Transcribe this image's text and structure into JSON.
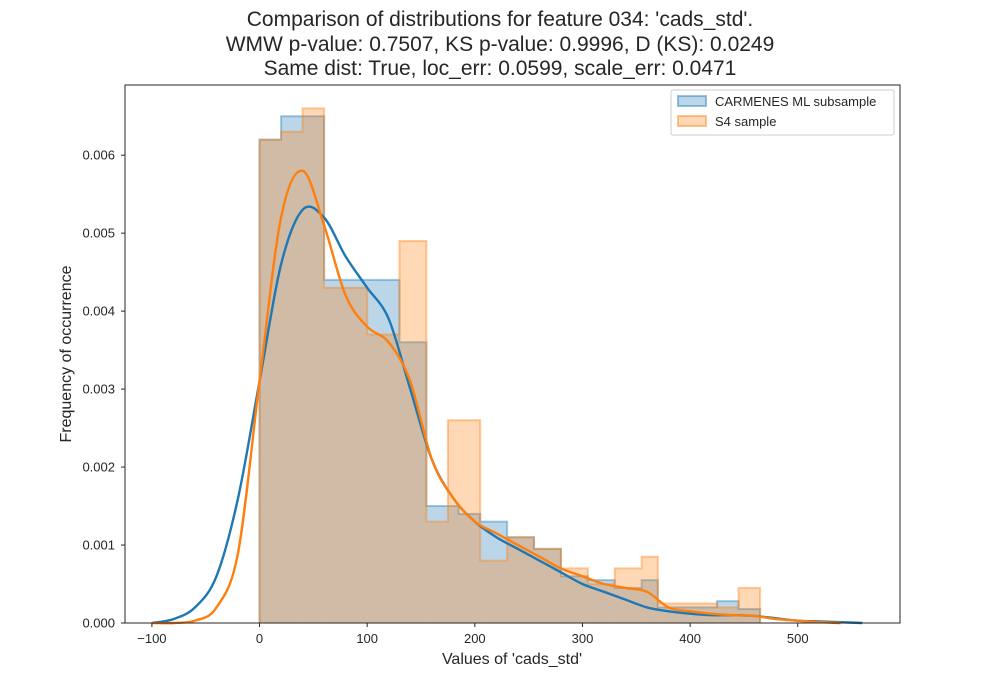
{
  "chart_data": {
    "type": "histogram",
    "title_lines": [
      "Comparison of distributions for feature 034: 'cads_std'.",
      "WMW p-value: 0.7507, KS p-value: 0.9996, D (KS): 0.0249",
      "Same dist: True, loc_err: 0.0599, scale_err: 0.0471"
    ],
    "xlabel": "Values of 'cads_std'",
    "ylabel": "Frequency of occurrence",
    "xlim": [
      -125,
      595
    ],
    "ylim": [
      0,
      0.0069
    ],
    "xticks": [
      -100,
      0,
      100,
      200,
      300,
      400,
      500
    ],
    "yticks": [
      0,
      0.001,
      0.002,
      0.003,
      0.004,
      0.005,
      0.006
    ],
    "ytick_labels": [
      "0.000",
      "0.001",
      "0.002",
      "0.003",
      "0.004",
      "0.005",
      "0.006"
    ],
    "grid": false,
    "legend_position": "top-right",
    "series": [
      {
        "name": "CARMENES ML subsample",
        "color": "#1f77b4",
        "bin_edges": [
          0,
          20,
          40,
          60,
          100,
          130,
          155,
          185,
          205,
          230,
          255,
          280,
          305,
          330,
          355,
          370,
          425,
          445,
          465
        ],
        "hist": [
          0.0062,
          0.0065,
          0.0065,
          0.0044,
          0.0044,
          0.0036,
          0.0015,
          0.0014,
          0.0013,
          0.0011,
          0.00095,
          0.0006,
          0.00055,
          0.00045,
          0.00055,
          0.0002,
          0.00028,
          0.00018
        ],
        "kde_x": [
          -100,
          -80,
          -60,
          -40,
          -20,
          0,
          20,
          40,
          60,
          80,
          100,
          120,
          140,
          160,
          180,
          200,
          220,
          240,
          260,
          280,
          300,
          320,
          340,
          360,
          380,
          400,
          420,
          440,
          460,
          480,
          500,
          520,
          540,
          560
        ],
        "kde_y": [
          0.0,
          5e-05,
          0.0002,
          0.0006,
          0.0016,
          0.0031,
          0.0046,
          0.0053,
          0.0052,
          0.0047,
          0.0043,
          0.0039,
          0.003,
          0.0021,
          0.0016,
          0.0013,
          0.0011,
          0.00095,
          0.0008,
          0.00065,
          0.0005,
          0.0004,
          0.0003,
          0.0002,
          0.00015,
          0.00012,
          0.0001,
          0.0001,
          9e-05,
          6e-05,
          3e-05,
          2e-05,
          1e-05,
          0.0
        ]
      },
      {
        "name": "S4 sample",
        "color": "#ff7f0e",
        "bin_edges": [
          0,
          20,
          40,
          60,
          100,
          130,
          155,
          175,
          205,
          230,
          255,
          280,
          305,
          330,
          355,
          370,
          425,
          445,
          465
        ],
        "hist": [
          0.0062,
          0.0063,
          0.0066,
          0.0043,
          0.0037,
          0.0049,
          0.0013,
          0.0026,
          0.0008,
          0.0011,
          0.00095,
          0.0007,
          0.0005,
          0.0007,
          0.00085,
          0.00025,
          0.0002,
          0.00045
        ],
        "kde_x": [
          -100,
          -80,
          -60,
          -40,
          -20,
          0,
          20,
          40,
          60,
          80,
          100,
          120,
          140,
          160,
          180,
          200,
          220,
          240,
          260,
          280,
          300,
          320,
          340,
          360,
          380,
          400,
          420,
          440,
          460,
          480,
          500,
          520,
          540
        ],
        "kde_y": [
          0.0,
          0.0,
          3e-05,
          0.0002,
          0.0009,
          0.0031,
          0.0052,
          0.0058,
          0.0051,
          0.0042,
          0.0038,
          0.0036,
          0.0031,
          0.0021,
          0.0016,
          0.0013,
          0.00115,
          0.001,
          0.00085,
          0.0007,
          0.0006,
          0.0005,
          0.00045,
          0.0004,
          0.0002,
          0.00015,
          0.00012,
          0.0001,
          9e-05,
          5e-05,
          3e-05,
          1e-05,
          0.0
        ]
      }
    ]
  }
}
